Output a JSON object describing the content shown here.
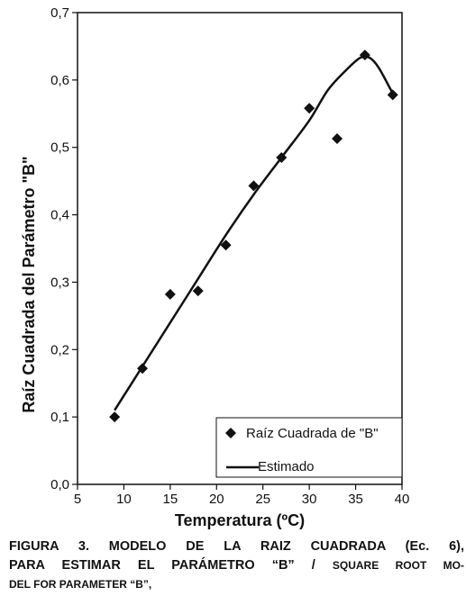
{
  "chart_data": {
    "type": "scatter",
    "xlabel": "Temperatura (ºC)",
    "ylabel": "Raíz Cuadrada del Parámetro \"B\"",
    "xlim": [
      5,
      40
    ],
    "ylim": [
      0,
      0.7
    ],
    "x_ticks": [
      "5",
      "10",
      "15",
      "20",
      "25",
      "30",
      "35",
      "40"
    ],
    "y_ticks": [
      "0,0",
      "0,1",
      "0,2",
      "0,3",
      "0,4",
      "0,5",
      "0,6",
      "0,7"
    ],
    "legend_position": "bottom-right",
    "series": [
      {
        "name": "Raíz Cuadrada de \"B\"",
        "marker": "diamond",
        "color": "#111111",
        "points": [
          {
            "x": 9,
            "y": 0.1
          },
          {
            "x": 12,
            "y": 0.172
          },
          {
            "x": 15,
            "y": 0.282
          },
          {
            "x": 18,
            "y": 0.287
          },
          {
            "x": 21,
            "y": 0.355
          },
          {
            "x": 24,
            "y": 0.443
          },
          {
            "x": 27,
            "y": 0.485
          },
          {
            "x": 30,
            "y": 0.558
          },
          {
            "x": 33,
            "y": 0.513
          },
          {
            "x": 36,
            "y": 0.637
          },
          {
            "x": 39,
            "y": 0.578
          }
        ]
      },
      {
        "name": "Estimado",
        "type": "line",
        "color": "#111111",
        "points": [
          {
            "x": 9,
            "y": 0.11
          },
          {
            "x": 12,
            "y": 0.175
          },
          {
            "x": 15,
            "y": 0.24
          },
          {
            "x": 18,
            "y": 0.305
          },
          {
            "x": 21,
            "y": 0.37
          },
          {
            "x": 24,
            "y": 0.43
          },
          {
            "x": 27,
            "y": 0.485
          },
          {
            "x": 30,
            "y": 0.54
          },
          {
            "x": 32,
            "y": 0.585
          },
          {
            "x": 34,
            "y": 0.615
          },
          {
            "x": 35.5,
            "y": 0.633
          },
          {
            "x": 36.5,
            "y": 0.633
          },
          {
            "x": 37.5,
            "y": 0.618
          },
          {
            "x": 39,
            "y": 0.58
          }
        ]
      }
    ]
  },
  "caption": {
    "line1": "FIGURA 3. MODELO DE LA RAIZ CUADRADA (Ec. 6),",
    "line2_main": "PARA ESTIMAR EL PARÁMETRO “B” / ",
    "line2_small": "SQUARE ROOT MO-",
    "line3": "DEL FOR PARAMETER “B”,"
  }
}
